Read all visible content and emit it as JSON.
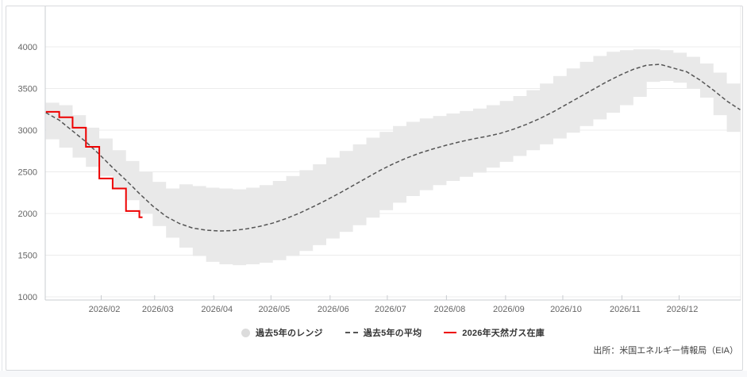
{
  "source_note": "出所：米国エネルギー情報局（EIA）",
  "legend": {
    "items": [
      {
        "label": "過去5年のレンジ",
        "type": "band",
        "color": "#dcdcdc"
      },
      {
        "label": "過去5年の平均",
        "type": "dashed",
        "color": "#555555"
      },
      {
        "label": "2026年天然ガス在庫",
        "type": "line",
        "color": "#ee0000"
      }
    ]
  },
  "chart_data": {
    "type": "line",
    "title": "",
    "xlabel": "",
    "ylabel": "",
    "ylim": [
      1000,
      4480
    ],
    "y_ticks": [
      1000,
      1500,
      2000,
      2500,
      3000,
      3500,
      4000
    ],
    "x_tick_labels": [
      "2026/02",
      "2026/03",
      "2026/04",
      "2026/05",
      "2026/06",
      "2026/07",
      "2026/08",
      "2026/09",
      "2026/10",
      "2026/11",
      "2026/12"
    ],
    "x_tick_day_offsets": [
      31,
      59,
      90,
      120,
      151,
      181,
      212,
      243,
      273,
      304,
      334
    ],
    "x_start_day_of_year": 2,
    "x_interval_days": 7,
    "grid": true,
    "legend_position": "bottom",
    "series": [
      {
        "name": "過去5年のレンジ（上限）",
        "role": "band_top",
        "color": "#e9e9e9",
        "values": [
          3330,
          3300,
          3180,
          3030,
          2900,
          2760,
          2630,
          2500,
          2380,
          2300,
          2350,
          2330,
          2310,
          2300,
          2290,
          2310,
          2340,
          2390,
          2450,
          2520,
          2590,
          2670,
          2750,
          2830,
          2910,
          2980,
          3050,
          3100,
          3140,
          3170,
          3200,
          3230,
          3260,
          3300,
          3350,
          3410,
          3480,
          3560,
          3650,
          3740,
          3820,
          3890,
          3940,
          3960,
          3970,
          3970,
          3960,
          3930,
          3880,
          3800,
          3690,
          3560,
          3470
        ]
      },
      {
        "name": "過去5年のレンジ（下限）",
        "role": "band_bottom",
        "color": "#e9e9e9",
        "values": [
          2890,
          2790,
          2670,
          2560,
          2450,
          2310,
          2160,
          2000,
          1850,
          1710,
          1590,
          1490,
          1420,
          1390,
          1380,
          1390,
          1410,
          1440,
          1490,
          1550,
          1620,
          1700,
          1780,
          1860,
          1950,
          2040,
          2130,
          2210,
          2280,
          2340,
          2390,
          2440,
          2490,
          2550,
          2620,
          2690,
          2760,
          2830,
          2900,
          2970,
          3050,
          3130,
          3210,
          3300,
          3400,
          3580,
          3590,
          3570,
          3500,
          3390,
          3180,
          2980,
          2890
        ]
      },
      {
        "name": "過去5年の平均",
        "role": "average",
        "color": "#555555",
        "style": "dashed",
        "values": [
          3210,
          3120,
          2990,
          2860,
          2710,
          2550,
          2400,
          2240,
          2090,
          1965,
          1880,
          1825,
          1800,
          1790,
          1795,
          1815,
          1845,
          1885,
          1940,
          2005,
          2080,
          2160,
          2245,
          2335,
          2425,
          2515,
          2595,
          2665,
          2725,
          2775,
          2820,
          2860,
          2895,
          2925,
          2960,
          3010,
          3070,
          3140,
          3220,
          3310,
          3400,
          3490,
          3580,
          3660,
          3730,
          3780,
          3790,
          3745,
          3700,
          3600,
          3480,
          3350,
          3245
        ]
      },
      {
        "name": "2026年天然ガス在庫",
        "role": "actual",
        "color": "#ee0000",
        "style": "step",
        "values": [
          3220,
          3155,
          3030,
          2800,
          2420,
          2300,
          2030,
          1955
        ]
      }
    ],
    "colors": {
      "grid": "#ececec",
      "axis": "#c9ccd0",
      "tick_label": "#666666",
      "band": "#e9e9e9",
      "average": "#555555",
      "actual": "#ee0000"
    }
  }
}
